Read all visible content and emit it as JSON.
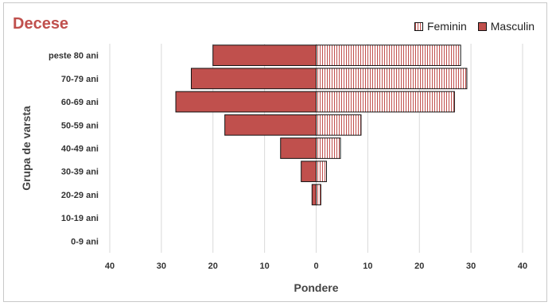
{
  "chart_data": {
    "type": "bar",
    "orientation": "horizontal",
    "layout": "population-pyramid",
    "title": "Decese",
    "xlabel": "Pondere",
    "ylabel": "Grupa de varsta",
    "categories": [
      "peste 80 ani",
      "70-79 ani",
      "60-69 ani",
      "50-59 ani",
      "40-49 ani",
      "30-39 ani",
      "20-29 ani",
      "10-19 ani",
      "0-9 ani"
    ],
    "series": [
      {
        "name": "Feminin",
        "side": "right",
        "pattern": "vertical-stripes",
        "values": [
          28,
          29.2,
          26.8,
          8.7,
          4.7,
          2.0,
          0.9,
          0,
          0
        ]
      },
      {
        "name": "Masculin",
        "side": "left",
        "pattern": "solid",
        "values": [
          20,
          24.2,
          27.2,
          17.7,
          6.9,
          2.9,
          0.8,
          0,
          0
        ]
      }
    ],
    "xlim": [
      -40,
      40
    ],
    "xticks": [
      -40,
      -30,
      -20,
      -10,
      0,
      10,
      20,
      30,
      40
    ],
    "xtick_labels": [
      "40",
      "30",
      "20",
      "10",
      "0",
      "10",
      "20",
      "30",
      "40"
    ],
    "grid": "vertical",
    "legend": "top-right",
    "colors": {
      "bar": "#c0504d",
      "title": "#c0504d",
      "edge": "#111111",
      "grid": "#d9d9d9"
    }
  }
}
